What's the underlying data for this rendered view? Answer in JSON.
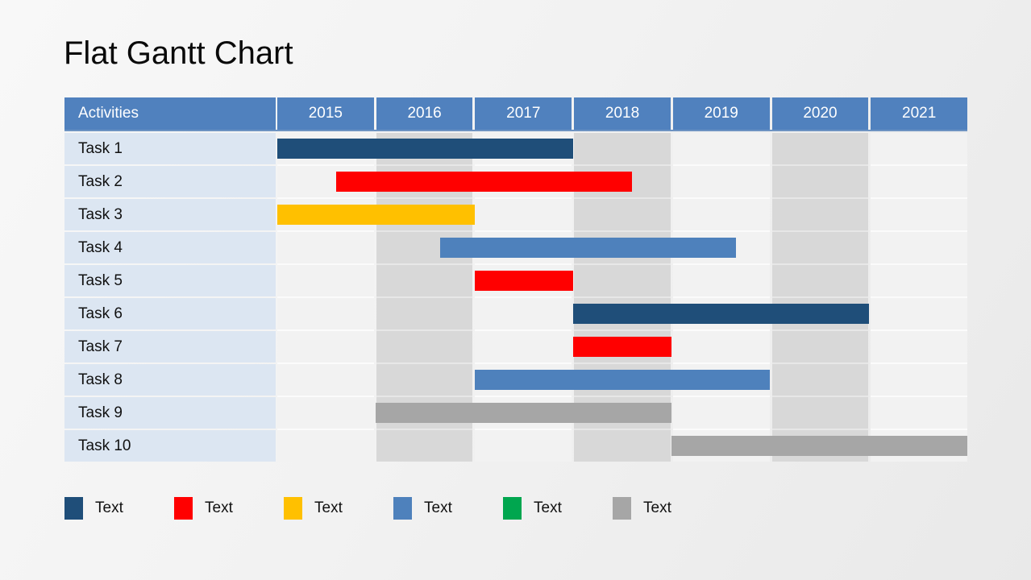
{
  "slide": {
    "title": "Flat Gantt Chart"
  },
  "table": {
    "header": {
      "activities_label": "Activities",
      "years": [
        "2015",
        "2016",
        "2017",
        "2018",
        "2019",
        "2020",
        "2021"
      ]
    },
    "shaded_years": [
      "2016",
      "2018",
      "2020"
    ],
    "header_bg": "#5081BE",
    "label_cell_bg": "#DCE6F2",
    "column_colors": {
      "light": "#F2F2F2",
      "shaded": "#D8D8D8",
      "light_gap": "#FBFBFB",
      "shaded_gap": "#E7E7E7"
    }
  },
  "bar_colors": {
    "navy": "#1F4E79",
    "red": "#FF0000",
    "amber": "#FFC000",
    "blue": "#4E81BC",
    "green": "#00A64F",
    "gray": "#A6A6A6"
  },
  "chart_data": {
    "type": "bar",
    "variant": "gantt",
    "title": "Flat Gantt Chart",
    "x_axis": {
      "ticks": [
        "2015",
        "2016",
        "2017",
        "2018",
        "2019",
        "2020",
        "2021"
      ],
      "range": [
        2015,
        2022
      ]
    },
    "grid": "alternating-column-shading",
    "legend_position": "bottom",
    "tasks": [
      {
        "name": "Task 1",
        "start": 2015.0,
        "end": 2018.0,
        "color_key": "navy"
      },
      {
        "name": "Task 2",
        "start": 2015.6,
        "end": 2018.6,
        "color_key": "red"
      },
      {
        "name": "Task 3",
        "start": 2015.0,
        "end": 2017.0,
        "color_key": "amber"
      },
      {
        "name": "Task 4",
        "start": 2016.65,
        "end": 2019.65,
        "color_key": "blue"
      },
      {
        "name": "Task 5",
        "start": 2017.0,
        "end": 2018.0,
        "color_key": "red"
      },
      {
        "name": "Task 6",
        "start": 2018.0,
        "end": 2021.0,
        "color_key": "navy"
      },
      {
        "name": "Task 7",
        "start": 2018.0,
        "end": 2019.0,
        "color_key": "red"
      },
      {
        "name": "Task 8",
        "start": 2017.0,
        "end": 2020.0,
        "color_key": "blue"
      },
      {
        "name": "Task 9",
        "start": 2016.0,
        "end": 2019.0,
        "color_key": "gray"
      },
      {
        "name": "Task 10",
        "start": 2019.0,
        "end": 2022.0,
        "color_key": "gray"
      }
    ]
  },
  "legend": {
    "items": [
      {
        "label": "Text",
        "color_key": "navy"
      },
      {
        "label": "Text",
        "color_key": "red"
      },
      {
        "label": "Text",
        "color_key": "amber"
      },
      {
        "label": "Text",
        "color_key": "blue"
      },
      {
        "label": "Text",
        "color_key": "green"
      },
      {
        "label": "Text",
        "color_key": "gray"
      }
    ]
  }
}
